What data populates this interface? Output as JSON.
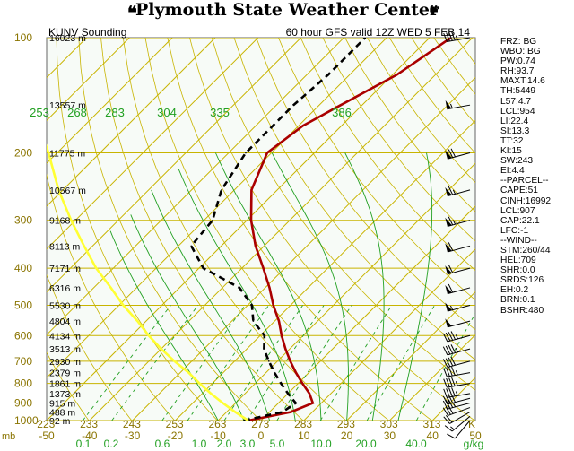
{
  "header": {
    "title": "Plymouth State Weather Center",
    "flag_glyph": "❝"
  },
  "chart_data": {
    "type": "line",
    "title": "KUNV Sounding",
    "subtitle": "60 hour GFS valid 12Z WED 5 FEB 14",
    "xlabel": "",
    "ylabel": "mb",
    "y_scale": "log",
    "ylim": [
      100,
      1000
    ],
    "xlim": [
      -50,
      50
    ],
    "pressure_ticks": [
      "100",
      "200",
      "300",
      "400",
      "500",
      "600",
      "700",
      "800",
      "900",
      "1000"
    ],
    "height_labels": [
      {
        "p": 100,
        "label": "16023 m"
      },
      {
        "p": 150,
        "label": "13557 m"
      },
      {
        "p": 200,
        "label": "11775 m"
      },
      {
        "p": 250,
        "label": "10567 m"
      },
      {
        "p": 300,
        "label": "9168 m"
      },
      {
        "p": 350,
        "label": "8113 m"
      },
      {
        "p": 400,
        "label": "7171 m"
      },
      {
        "p": 450,
        "label": "6316 m"
      },
      {
        "p": 500,
        "label": "5530 m"
      },
      {
        "p": 550,
        "label": "4804 m"
      },
      {
        "p": 600,
        "label": "4134 m"
      },
      {
        "p": 650,
        "label": "3513 m"
      },
      {
        "p": 700,
        "label": "2930 m"
      },
      {
        "p": 750,
        "label": "2379 m"
      },
      {
        "p": 800,
        "label": "1861 m"
      },
      {
        "p": 850,
        "label": "1373 m"
      },
      {
        "p": 900,
        "label": "915 m"
      },
      {
        "p": 950,
        "label": "488 m"
      },
      {
        "p": 1000,
        "label": "92 m"
      }
    ],
    "temp_ticks": [
      {
        "value": -50,
        "label": "-50"
      },
      {
        "value": -40,
        "label": "-40"
      },
      {
        "value": -30,
        "label": "-30"
      },
      {
        "value": -20,
        "label": "-20"
      },
      {
        "value": -10,
        "label": "-10"
      },
      {
        "value": 0,
        "label": "0"
      },
      {
        "value": 10,
        "label": "10"
      },
      {
        "value": 20,
        "label": "20"
      },
      {
        "value": 30,
        "label": "30"
      },
      {
        "value": 40,
        "label": "40"
      },
      {
        "value": 50,
        "label": "50"
      }
    ],
    "theta_bottom_labels": [
      "223",
      "233",
      "243",
      "253",
      "263",
      "273",
      "283",
      "293",
      "303",
      "313"
    ],
    "theta_e_labels": [
      "253",
      "268",
      "283",
      "304",
      "335",
      "386"
    ],
    "mixing_ratio_labels": [
      "0.1",
      "0.2",
      "0.6",
      "1.0",
      "2.0",
      "3.0",
      "5.0",
      "10.0",
      "20.0",
      "40.0"
    ],
    "mixing_ratio_unit": "g/kg",
    "kelvin_label": "K",
    "series": [
      {
        "name": "",
        "kind": "temperature",
        "color": "#aa0000",
        "points": [
          {
            "p": 1000,
            "t": -3
          },
          {
            "p": 950,
            "t": 5
          },
          {
            "p": 900,
            "t": 8
          },
          {
            "p": 850,
            "t": 5
          },
          {
            "p": 800,
            "t": 1
          },
          {
            "p": 750,
            "t": -3
          },
          {
            "p": 700,
            "t": -7
          },
          {
            "p": 650,
            "t": -11
          },
          {
            "p": 600,
            "t": -15
          },
          {
            "p": 550,
            "t": -19
          },
          {
            "p": 500,
            "t": -24
          },
          {
            "p": 450,
            "t": -29
          },
          {
            "p": 400,
            "t": -35
          },
          {
            "p": 350,
            "t": -42
          },
          {
            "p": 300,
            "t": -49
          },
          {
            "p": 250,
            "t": -56
          },
          {
            "p": 200,
            "t": -61
          },
          {
            "p": 170,
            "t": -59
          },
          {
            "p": 150,
            "t": -55
          },
          {
            "p": 125,
            "t": -49
          },
          {
            "p": 100,
            "t": -45
          }
        ]
      },
      {
        "name": "",
        "kind": "dewpoint",
        "color": "#000000",
        "points": [
          {
            "p": 1000,
            "t": -4
          },
          {
            "p": 950,
            "t": 3
          },
          {
            "p": 900,
            "t": 4
          },
          {
            "p": 850,
            "t": 0
          },
          {
            "p": 800,
            "t": -4
          },
          {
            "p": 750,
            "t": -8
          },
          {
            "p": 700,
            "t": -12
          },
          {
            "p": 650,
            "t": -16
          },
          {
            "p": 600,
            "t": -19
          },
          {
            "p": 550,
            "t": -25
          },
          {
            "p": 500,
            "t": -29
          },
          {
            "p": 450,
            "t": -36
          },
          {
            "p": 400,
            "t": -49
          },
          {
            "p": 350,
            "t": -57
          },
          {
            "p": 300,
            "t": -58
          },
          {
            "p": 250,
            "t": -63
          },
          {
            "p": 200,
            "t": -66
          },
          {
            "p": 150,
            "t": -66
          },
          {
            "p": 125,
            "t": -65
          },
          {
            "p": 100,
            "t": -65
          }
        ]
      },
      {
        "name": "",
        "kind": "parcel",
        "color": "#ffff33",
        "points": [
          {
            "p": 1000,
            "t": -3
          },
          {
            "p": 950,
            "t": -8
          },
          {
            "p": 900,
            "t": -13
          },
          {
            "p": 850,
            "t": -18
          },
          {
            "p": 800,
            "t": -23
          },
          {
            "p": 750,
            "t": -28
          },
          {
            "p": 700,
            "t": -34
          },
          {
            "p": 650,
            "t": -40
          },
          {
            "p": 600,
            "t": -46
          },
          {
            "p": 550,
            "t": -52
          },
          {
            "p": 500,
            "t": -59
          },
          {
            "p": 450,
            "t": -66
          },
          {
            "p": 400,
            "t": -74
          },
          {
            "p": 350,
            "t": -82
          },
          {
            "p": 300,
            "t": -91
          },
          {
            "p": 250,
            "t": -101
          },
          {
            "p": 200,
            "t": -112
          },
          {
            "p": 150,
            "t": -127
          },
          {
            "p": 100,
            "t": -145
          }
        ]
      }
    ],
    "wind_barbs": [
      {
        "p": 1000,
        "dir": 220,
        "speed": 10
      },
      {
        "p": 975,
        "dir": 230,
        "speed": 15
      },
      {
        "p": 950,
        "dir": 240,
        "speed": 20
      },
      {
        "p": 925,
        "dir": 250,
        "speed": 30
      },
      {
        "p": 900,
        "dir": 255,
        "speed": 35
      },
      {
        "p": 875,
        "dir": 255,
        "speed": 40
      },
      {
        "p": 850,
        "dir": 260,
        "speed": 45
      },
      {
        "p": 800,
        "dir": 260,
        "speed": 45
      },
      {
        "p": 750,
        "dir": 260,
        "speed": 45
      },
      {
        "p": 700,
        "dir": 255,
        "speed": 40
      },
      {
        "p": 650,
        "dir": 255,
        "speed": 45
      },
      {
        "p": 600,
        "dir": 255,
        "speed": 45
      },
      {
        "p": 550,
        "dir": 255,
        "speed": 50
      },
      {
        "p": 500,
        "dir": 255,
        "speed": 55
      },
      {
        "p": 450,
        "dir": 255,
        "speed": 60
      },
      {
        "p": 400,
        "dir": 255,
        "speed": 60
      },
      {
        "p": 350,
        "dir": 255,
        "speed": 60
      },
      {
        "p": 300,
        "dir": 255,
        "speed": 65
      },
      {
        "p": 250,
        "dir": 255,
        "speed": 65
      },
      {
        "p": 200,
        "dir": 255,
        "speed": 70
      },
      {
        "p": 150,
        "dir": 260,
        "speed": 55
      },
      {
        "p": 100,
        "dir": 260,
        "speed": 45
      }
    ],
    "colors": {
      "isobar": "#c8b400",
      "isotherm": "#c8b400",
      "dry_adiabat": "#c8b400",
      "moist_adiabat": "#22a022",
      "mixing_ratio": "#22a022",
      "background": "#f7fbf7"
    },
    "grid": true,
    "legend": "none"
  },
  "indices": [
    "FRZ: BG",
    "WBO: BG",
    "PW:0.74",
    "RH:93.7",
    "MAXT:14.6",
    "TH:5449",
    "L57:4.7",
    "LCL:954",
    "LI:22.4",
    "SI:13.3",
    "TT:32",
    "KI:15",
    "SW:243",
    "EI:4.4",
    "--PARCEL--",
    "CAPE:51",
    "CINH:16992",
    "LCL:907",
    "CAP:22.1",
    "LFC:-1",
    "--WIND--",
    "STM:260/44",
    "HEL:709",
    "SHR:0.0",
    "SRDS:126",
    "EH:0.2",
    "BRN:0.1",
    "BSHR:480"
  ]
}
